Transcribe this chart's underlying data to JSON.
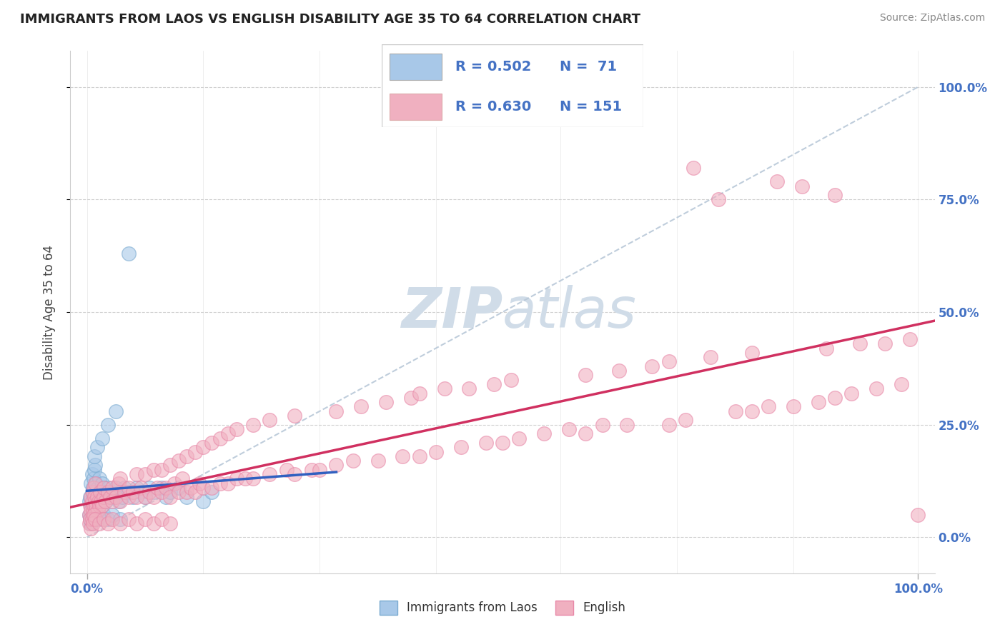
{
  "title": "IMMIGRANTS FROM LAOS VS ENGLISH DISABILITY AGE 35 TO 64 CORRELATION CHART",
  "source": "Source: ZipAtlas.com",
  "ylabel": "Disability Age 35 to 64",
  "blue_color": "#a8c8e8",
  "pink_color": "#f0b0c0",
  "blue_edge_color": "#7aaad0",
  "pink_edge_color": "#e888a8",
  "blue_line_color": "#3060c0",
  "pink_line_color": "#d03060",
  "dashed_line_color": "#b8c8d8",
  "watermark_color": "#d0dce8",
  "label_color": "#4472c4",
  "legend_r1": "R = 0.502",
  "legend_n1": "N =  71",
  "legend_r2": "R = 0.630",
  "legend_n2": "N = 151",
  "blue_legend_color": "#a8c8e8",
  "pink_legend_color": "#f0b0c0",
  "blue_points": [
    [
      0.3,
      8
    ],
    [
      0.4,
      9
    ],
    [
      0.5,
      7
    ],
    [
      0.5,
      12
    ],
    [
      0.6,
      10
    ],
    [
      0.6,
      14
    ],
    [
      0.7,
      8
    ],
    [
      0.7,
      11
    ],
    [
      0.8,
      9
    ],
    [
      0.8,
      13
    ],
    [
      0.9,
      8
    ],
    [
      0.9,
      15
    ],
    [
      1.0,
      7
    ],
    [
      1.0,
      10
    ],
    [
      1.0,
      16
    ],
    [
      1.1,
      9
    ],
    [
      1.1,
      12
    ],
    [
      1.2,
      8
    ],
    [
      1.3,
      11
    ],
    [
      1.4,
      9
    ],
    [
      1.5,
      13
    ],
    [
      1.6,
      10
    ],
    [
      1.7,
      8
    ],
    [
      1.8,
      12
    ],
    [
      2.0,
      9
    ],
    [
      2.0,
      11
    ],
    [
      2.2,
      10
    ],
    [
      2.3,
      8
    ],
    [
      2.5,
      11
    ],
    [
      2.8,
      9
    ],
    [
      3.0,
      10
    ],
    [
      3.2,
      9
    ],
    [
      3.5,
      11
    ],
    [
      3.8,
      8
    ],
    [
      4.0,
      10
    ],
    [
      4.2,
      9
    ],
    [
      4.5,
      11
    ],
    [
      5.0,
      10
    ],
    [
      5.5,
      9
    ],
    [
      6.0,
      11
    ],
    [
      6.5,
      10
    ],
    [
      7.0,
      9
    ],
    [
      7.5,
      11
    ],
    [
      8.0,
      10
    ],
    [
      9.0,
      11
    ],
    [
      9.5,
      9
    ],
    [
      10.0,
      10
    ],
    [
      11.0,
      11
    ],
    [
      0.3,
      5
    ],
    [
      0.4,
      4
    ],
    [
      0.5,
      3
    ],
    [
      0.6,
      5
    ],
    [
      0.7,
      4
    ],
    [
      0.8,
      6
    ],
    [
      1.0,
      5
    ],
    [
      1.5,
      4
    ],
    [
      2.0,
      5
    ],
    [
      2.5,
      4
    ],
    [
      3.0,
      5
    ],
    [
      4.0,
      4
    ],
    [
      5.0,
      63
    ],
    [
      0.9,
      18
    ],
    [
      1.2,
      20
    ],
    [
      1.8,
      22
    ],
    [
      2.5,
      25
    ],
    [
      3.5,
      28
    ],
    [
      12.0,
      9
    ],
    [
      14.0,
      8
    ],
    [
      15.0,
      10
    ]
  ],
  "pink_points": [
    [
      0.3,
      5
    ],
    [
      0.4,
      7
    ],
    [
      0.5,
      6
    ],
    [
      0.5,
      9
    ],
    [
      0.6,
      8
    ],
    [
      0.7,
      6
    ],
    [
      0.7,
      10
    ],
    [
      0.8,
      7
    ],
    [
      0.8,
      11
    ],
    [
      0.9,
      9
    ],
    [
      1.0,
      6
    ],
    [
      1.0,
      8
    ],
    [
      1.0,
      12
    ],
    [
      1.1,
      7
    ],
    [
      1.2,
      9
    ],
    [
      1.3,
      6
    ],
    [
      1.4,
      8
    ],
    [
      1.5,
      7
    ],
    [
      1.6,
      10
    ],
    [
      1.7,
      8
    ],
    [
      1.8,
      7
    ],
    [
      2.0,
      9
    ],
    [
      2.0,
      11
    ],
    [
      2.2,
      8
    ],
    [
      2.5,
      10
    ],
    [
      2.8,
      9
    ],
    [
      3.0,
      8
    ],
    [
      3.0,
      11
    ],
    [
      3.5,
      9
    ],
    [
      3.8,
      12
    ],
    [
      4.0,
      8
    ],
    [
      4.0,
      13
    ],
    [
      4.5,
      10
    ],
    [
      5.0,
      9
    ],
    [
      5.0,
      11
    ],
    [
      5.5,
      10
    ],
    [
      6.0,
      9
    ],
    [
      6.0,
      14
    ],
    [
      6.5,
      11
    ],
    [
      7.0,
      9
    ],
    [
      7.0,
      14
    ],
    [
      7.5,
      10
    ],
    [
      8.0,
      9
    ],
    [
      8.0,
      15
    ],
    [
      8.5,
      11
    ],
    [
      9.0,
      10
    ],
    [
      9.0,
      15
    ],
    [
      9.5,
      11
    ],
    [
      10.0,
      9
    ],
    [
      10.0,
      16
    ],
    [
      10.5,
      12
    ],
    [
      11.0,
      10
    ],
    [
      11.0,
      17
    ],
    [
      11.5,
      13
    ],
    [
      12.0,
      10
    ],
    [
      12.0,
      18
    ],
    [
      12.5,
      11
    ],
    [
      13.0,
      10
    ],
    [
      13.0,
      19
    ],
    [
      13.5,
      12
    ],
    [
      14.0,
      11
    ],
    [
      14.0,
      20
    ],
    [
      15.0,
      11
    ],
    [
      15.0,
      21
    ],
    [
      16.0,
      12
    ],
    [
      16.0,
      22
    ],
    [
      17.0,
      12
    ],
    [
      17.0,
      23
    ],
    [
      18.0,
      13
    ],
    [
      18.0,
      24
    ],
    [
      19.0,
      13
    ],
    [
      20.0,
      13
    ],
    [
      20.0,
      25
    ],
    [
      22.0,
      14
    ],
    [
      22.0,
      26
    ],
    [
      24.0,
      15
    ],
    [
      25.0,
      14
    ],
    [
      25.0,
      27
    ],
    [
      27.0,
      15
    ],
    [
      28.0,
      15
    ],
    [
      30.0,
      16
    ],
    [
      30.0,
      28
    ],
    [
      32.0,
      17
    ],
    [
      33.0,
      29
    ],
    [
      35.0,
      17
    ],
    [
      36.0,
      30
    ],
    [
      38.0,
      18
    ],
    [
      39.0,
      31
    ],
    [
      40.0,
      18
    ],
    [
      40.0,
      32
    ],
    [
      42.0,
      19
    ],
    [
      43.0,
      33
    ],
    [
      45.0,
      20
    ],
    [
      46.0,
      33
    ],
    [
      48.0,
      21
    ],
    [
      49.0,
      34
    ],
    [
      50.0,
      21
    ],
    [
      51.0,
      35
    ],
    [
      52.0,
      22
    ],
    [
      55.0,
      23
    ],
    [
      58.0,
      24
    ],
    [
      60.0,
      23
    ],
    [
      60.0,
      36
    ],
    [
      62.0,
      25
    ],
    [
      64.0,
      37
    ],
    [
      65.0,
      25
    ],
    [
      68.0,
      38
    ],
    [
      70.0,
      25
    ],
    [
      70.0,
      39
    ],
    [
      72.0,
      26
    ],
    [
      73.0,
      82
    ],
    [
      75.0,
      40
    ],
    [
      76.0,
      75
    ],
    [
      78.0,
      28
    ],
    [
      80.0,
      28
    ],
    [
      80.0,
      41
    ],
    [
      82.0,
      29
    ],
    [
      83.0,
      79
    ],
    [
      85.0,
      29
    ],
    [
      86.0,
      78
    ],
    [
      88.0,
      30
    ],
    [
      89.0,
      42
    ],
    [
      90.0,
      31
    ],
    [
      90.0,
      76
    ],
    [
      92.0,
      32
    ],
    [
      93.0,
      43
    ],
    [
      95.0,
      33
    ],
    [
      96.0,
      43
    ],
    [
      98.0,
      34
    ],
    [
      99.0,
      44
    ],
    [
      100.0,
      5
    ],
    [
      0.3,
      3
    ],
    [
      0.4,
      4
    ],
    [
      0.5,
      2
    ],
    [
      0.6,
      4
    ],
    [
      0.7,
      3
    ],
    [
      0.8,
      5
    ],
    [
      1.0,
      4
    ],
    [
      1.5,
      3
    ],
    [
      2.0,
      4
    ],
    [
      2.5,
      3
    ],
    [
      3.0,
      4
    ],
    [
      4.0,
      3
    ],
    [
      5.0,
      4
    ],
    [
      6.0,
      3
    ],
    [
      7.0,
      4
    ],
    [
      8.0,
      3
    ],
    [
      9.0,
      4
    ],
    [
      10.0,
      3
    ]
  ]
}
